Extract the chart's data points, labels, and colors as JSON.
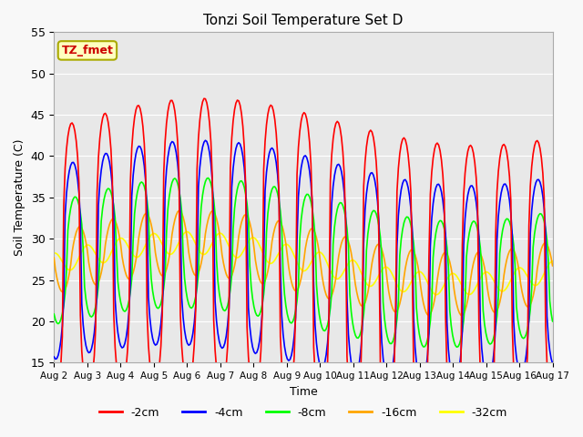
{
  "title": "Tonzi Soil Temperature Set D",
  "xlabel": "Time",
  "ylabel": "Soil Temperature (C)",
  "ylim": [
    15,
    55
  ],
  "yticks": [
    15,
    20,
    25,
    30,
    35,
    40,
    45,
    50,
    55
  ],
  "xlim_days": [
    0,
    15
  ],
  "xtick_labels": [
    "Aug 2",
    "Aug 3",
    "Aug 4",
    "Aug 5",
    "Aug 6",
    "Aug 7",
    "Aug 8",
    "Aug 9",
    "Aug 10",
    "Aug 11",
    "Aug 12",
    "Aug 13",
    "Aug 14",
    "Aug 15",
    "Aug 16",
    "Aug 17"
  ],
  "annotation_text": "TZ_fmet",
  "series_colors": {
    "-2cm": "#ff0000",
    "-4cm": "#0000ff",
    "-8cm": "#00ff00",
    "-16cm": "#ffa500",
    "-32cm": "#ffff00"
  },
  "legend_labels": [
    "-2cm",
    "-4cm",
    "-8cm",
    "-16cm",
    "-32cm"
  ],
  "background_color": "#f8f8f8",
  "plot_bg_color": "#e8e8e8",
  "figsize": [
    6.4,
    4.8
  ],
  "dpi": 100,
  "amplitudes": {
    "-2cm": {
      "amp": 15.5,
      "phase": 0.28,
      "mean": 27.0,
      "sharpness": 0.35
    },
    "-4cm": {
      "amp": 11.0,
      "phase": 0.31,
      "mean": 27.0,
      "sharpness": 0.4
    },
    "-8cm": {
      "amp": 7.0,
      "phase": 0.38,
      "mean": 27.0,
      "sharpness": 0.5
    },
    "-16cm": {
      "amp": 3.5,
      "phase": 0.52,
      "mean": 27.0,
      "sharpness": 0.8
    },
    "-32cm": {
      "amp": 1.2,
      "phase": 0.75,
      "mean": 27.0,
      "sharpness": 1.0
    }
  },
  "trend": {
    "amplitude": 2.5,
    "period": 16
  },
  "n_hours": 360
}
